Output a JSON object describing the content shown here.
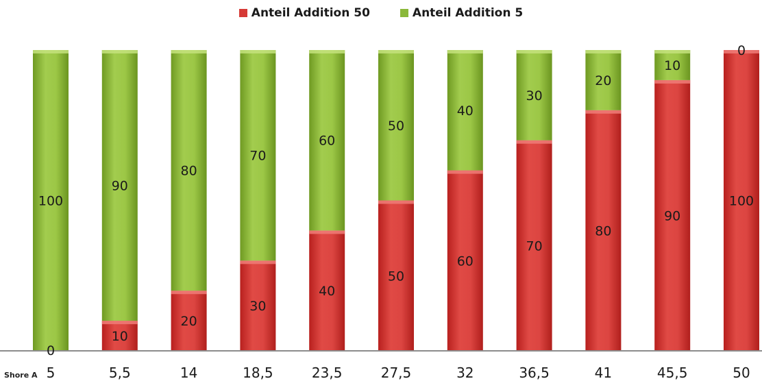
{
  "chart_data": {
    "type": "bar",
    "stacked": true,
    "title": "",
    "xlabel": "Shore A",
    "ylabel": "",
    "ylim": [
      0,
      100
    ],
    "grid": false,
    "legend_position": "top-center",
    "categories": [
      "5",
      "5,5",
      "14",
      "18,5",
      "23,5",
      "27,5",
      "32",
      "36,5",
      "41",
      "45,5",
      "50"
    ],
    "series": [
      {
        "name": "Anteil Addition 50",
        "color": "#d63a36",
        "values": [
          0,
          10,
          20,
          30,
          40,
          50,
          60,
          70,
          80,
          90,
          100
        ]
      },
      {
        "name": "Anteil Addition 5",
        "color": "#8ab83a",
        "values": [
          100,
          90,
          80,
          70,
          60,
          50,
          40,
          30,
          20,
          10,
          0
        ]
      }
    ]
  }
}
